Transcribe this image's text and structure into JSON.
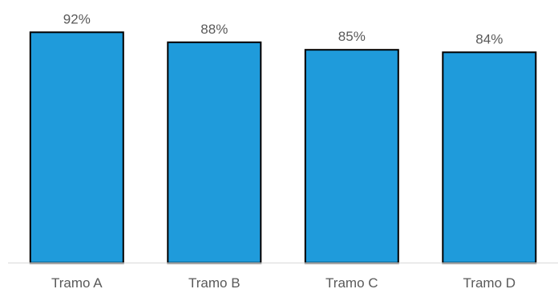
{
  "chart_data": {
    "type": "bar",
    "categories": [
      "Tramo A",
      "Tramo B",
      "Tramo C",
      "Tramo D"
    ],
    "values": [
      92,
      88,
      85,
      84
    ],
    "value_labels": [
      "92%",
      "88%",
      "85%",
      "84%"
    ],
    "title": "",
    "xlabel": "",
    "ylabel": "",
    "ylim": [
      0,
      100
    ],
    "grid": false,
    "legend": "none",
    "y_axis_visible": false
  },
  "colors": {
    "bar_fill": "#1f9bdb",
    "bar_stroke": "#000000",
    "axis_line": "#d9d9d9",
    "label_text": "#595959"
  }
}
